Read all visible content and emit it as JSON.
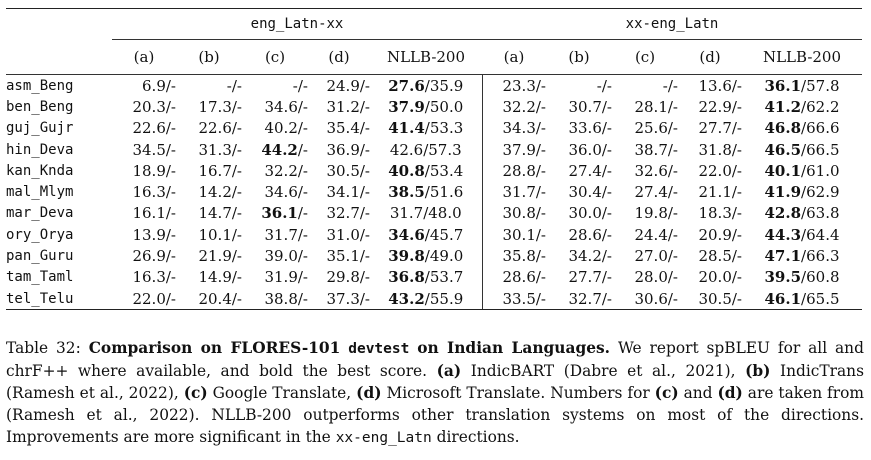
{
  "table": {
    "group_headers": [
      "eng_Latn-xx",
      "xx-eng_Latn"
    ],
    "column_headers": [
      "(a)",
      "(b)",
      "(c)",
      "(d)",
      "NLLB-200",
      "(a)",
      "(b)",
      "(c)",
      "(d)",
      "NLLB-200"
    ],
    "rows": [
      {
        "lang": "asm_Beng",
        "cells": [
          "6.9/-",
          "-/-",
          "-/-",
          "24.9/-",
          "27.6|/35.9",
          "23.3/-",
          "-/-",
          "-/-",
          "13.6/-",
          "36.1|/57.8"
        ],
        "bold": [
          4,
          9
        ]
      },
      {
        "lang": "ben_Beng",
        "cells": [
          "20.3/-",
          "17.3/-",
          "34.6/-",
          "31.2/-",
          "37.9|/50.0",
          "32.2/-",
          "30.7/-",
          "28.1/-",
          "22.9/-",
          "41.2|/62.2"
        ],
        "bold": [
          4,
          9
        ]
      },
      {
        "lang": "guj_Gujr",
        "cells": [
          "22.6/-",
          "22.6/-",
          "40.2/-",
          "35.4/-",
          "41.4|/53.3",
          "34.3/-",
          "33.6/-",
          "25.6/-",
          "27.7/-",
          "46.8|/66.6"
        ],
        "bold": [
          4,
          9
        ]
      },
      {
        "lang": "hin_Deva",
        "cells": [
          "34.5/-",
          "31.3/-",
          "44.2|/-",
          "36.9/-",
          "42.6/57.3",
          "37.9/-",
          "36.0/-",
          "38.7/-",
          "31.8/-",
          "46.5|/66.5"
        ],
        "bold": [
          2,
          9
        ]
      },
      {
        "lang": "kan_Knda",
        "cells": [
          "18.9/-",
          "16.7/-",
          "32.2/-",
          "30.5/-",
          "40.8|/53.4",
          "28.8/-",
          "27.4/-",
          "32.6/-",
          "22.0/-",
          "40.1|/61.0"
        ],
        "bold": [
          4,
          9
        ]
      },
      {
        "lang": "mal_Mlym",
        "cells": [
          "16.3/-",
          "14.2/-",
          "34.6/-",
          "34.1/-",
          "38.5|/51.6",
          "31.7/-",
          "30.4/-",
          "27.4/-",
          "21.1/-",
          "41.9|/62.9"
        ],
        "bold": [
          4,
          9
        ]
      },
      {
        "lang": "mar_Deva",
        "cells": [
          "16.1/-",
          "14.7/-",
          "36.1|/-",
          "32.7/-",
          "31.7/48.0",
          "30.8/-",
          "30.0/-",
          "19.8/-",
          "18.3/-",
          "42.8|/63.8"
        ],
        "bold": [
          2,
          9
        ]
      },
      {
        "lang": "ory_Orya",
        "cells": [
          "13.9/-",
          "10.1/-",
          "31.7/-",
          "31.0/-",
          "34.6|/45.7",
          "30.1/-",
          "28.6/-",
          "24.4/-",
          "20.9/-",
          "44.3|/64.4"
        ],
        "bold": [
          4,
          9
        ]
      },
      {
        "lang": "pan_Guru",
        "cells": [
          "26.9/-",
          "21.9/-",
          "39.0/-",
          "35.1/-",
          "39.8|/49.0",
          "35.8/-",
          "34.2/-",
          "27.0/-",
          "28.5/-",
          "47.1|/66.3"
        ],
        "bold": [
          4,
          9
        ]
      },
      {
        "lang": "tam_Taml",
        "cells": [
          "16.3/-",
          "14.9/-",
          "31.9/-",
          "29.8/-",
          "36.8|/53.7",
          "28.6/-",
          "27.7/-",
          "28.0/-",
          "20.0/-",
          "39.5|/60.8"
        ],
        "bold": [
          4,
          9
        ]
      },
      {
        "lang": "tel_Telu",
        "cells": [
          "22.0/-",
          "20.4/-",
          "38.8/-",
          "37.3/-",
          "43.2|/55.9",
          "33.5/-",
          "32.7/-",
          "30.6/-",
          "30.5/-",
          "46.1|/65.5"
        ],
        "bold": [
          4,
          9
        ]
      }
    ]
  },
  "caption": {
    "label": "Table 32:",
    "title_bold": "Comparison on FLORES-101",
    "title_code": "devtest",
    "title_bold_end": "on Indian Languages.",
    "text_1": "We report spBLEU for all and chrF++ where available, and bold the best score.",
    "a_key": "(a)",
    "a_text": "IndicBART (Dabre et al., 2021),",
    "b_key": "(b)",
    "b_text": "IndicTrans (Ramesh et al., 2022),",
    "c_key": "(c)",
    "c_text": "Google Translate,",
    "d_key": "(d)",
    "d_text": "Microsoft Translate. Numbers for",
    "c_key2": "(c)",
    "and_text": "and",
    "d_key2": "(d)",
    "text_2": "are taken from (Ramesh et al., 2022). NLLB-200 outperforms other translation systems on most of the directions. Improvements are more significant in the",
    "text_code": "xx-eng_Latn",
    "text_3": "directions."
  }
}
